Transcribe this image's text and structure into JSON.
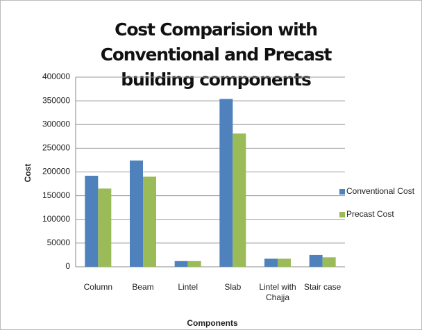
{
  "chart_data": {
    "type": "bar",
    "title": "Cost Comparision with Conventional and Precast building components",
    "x_label": "Components",
    "y_label": "Cost",
    "categories": [
      "Column",
      "Beam",
      "Lintel",
      "Slab",
      "Lintel with Chajja",
      "Stair case"
    ],
    "series": [
      {
        "name": "Conventional Cost",
        "color": "#4f81bd",
        "values": [
          192000,
          224000,
          12000,
          354000,
          17000,
          25000
        ]
      },
      {
        "name": "Precast Cost",
        "color": "#9bbb59",
        "values": [
          165000,
          190000,
          12000,
          281000,
          17000,
          20000
        ]
      }
    ],
    "ylim": [
      0,
      400000
    ],
    "yticks": [
      0,
      50000,
      100000,
      150000,
      200000,
      250000,
      300000,
      350000,
      400000
    ],
    "grid": true,
    "legend": "right"
  }
}
